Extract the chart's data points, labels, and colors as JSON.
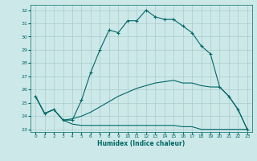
{
  "xlabel": "Humidex (Indice chaleur)",
  "bg_color": "#cde8e8",
  "line_color": "#006868",
  "grid_color": "#a8cccc",
  "xlim": [
    -0.5,
    23.5
  ],
  "ylim": [
    22.8,
    32.4
  ],
  "xticks": [
    0,
    1,
    2,
    3,
    4,
    5,
    6,
    7,
    8,
    9,
    10,
    11,
    12,
    13,
    14,
    15,
    16,
    17,
    18,
    19,
    20,
    21,
    22,
    23
  ],
  "yticks": [
    23,
    24,
    25,
    26,
    27,
    28,
    29,
    30,
    31,
    32
  ],
  "line1_x": [
    0,
    1,
    2,
    3,
    4,
    5,
    6,
    7,
    8,
    9,
    10,
    11,
    12,
    13,
    14,
    15,
    16,
    17,
    18,
    19,
    20,
    21,
    22,
    23
  ],
  "line1_y": [
    25.5,
    24.2,
    24.5,
    23.7,
    23.7,
    25.2,
    27.3,
    29.0,
    30.5,
    30.3,
    31.2,
    31.2,
    32.0,
    31.5,
    31.3,
    31.3,
    30.8,
    30.3,
    29.3,
    28.7,
    26.2,
    25.5,
    24.5,
    23.0
  ],
  "line2_x": [
    0,
    1,
    2,
    3,
    4,
    5,
    6,
    7,
    8,
    9,
    10,
    11,
    12,
    13,
    14,
    15,
    16,
    17,
    18,
    19,
    20,
    21,
    22,
    23
  ],
  "line2_y": [
    25.5,
    24.2,
    24.5,
    23.7,
    23.8,
    24.0,
    24.3,
    24.7,
    25.1,
    25.5,
    25.8,
    26.1,
    26.3,
    26.5,
    26.6,
    26.7,
    26.5,
    26.5,
    26.3,
    26.2,
    26.2,
    25.5,
    24.5,
    23.0
  ],
  "line3_x": [
    0,
    1,
    2,
    3,
    4,
    5,
    6,
    7,
    8,
    9,
    10,
    11,
    12,
    13,
    14,
    15,
    16,
    17,
    18,
    19,
    20,
    21,
    22,
    23
  ],
  "line3_y": [
    25.5,
    24.2,
    24.5,
    23.7,
    23.4,
    23.3,
    23.3,
    23.3,
    23.3,
    23.3,
    23.3,
    23.3,
    23.3,
    23.3,
    23.3,
    23.3,
    23.2,
    23.2,
    23.0,
    23.0,
    23.0,
    23.0,
    23.0,
    23.0
  ]
}
